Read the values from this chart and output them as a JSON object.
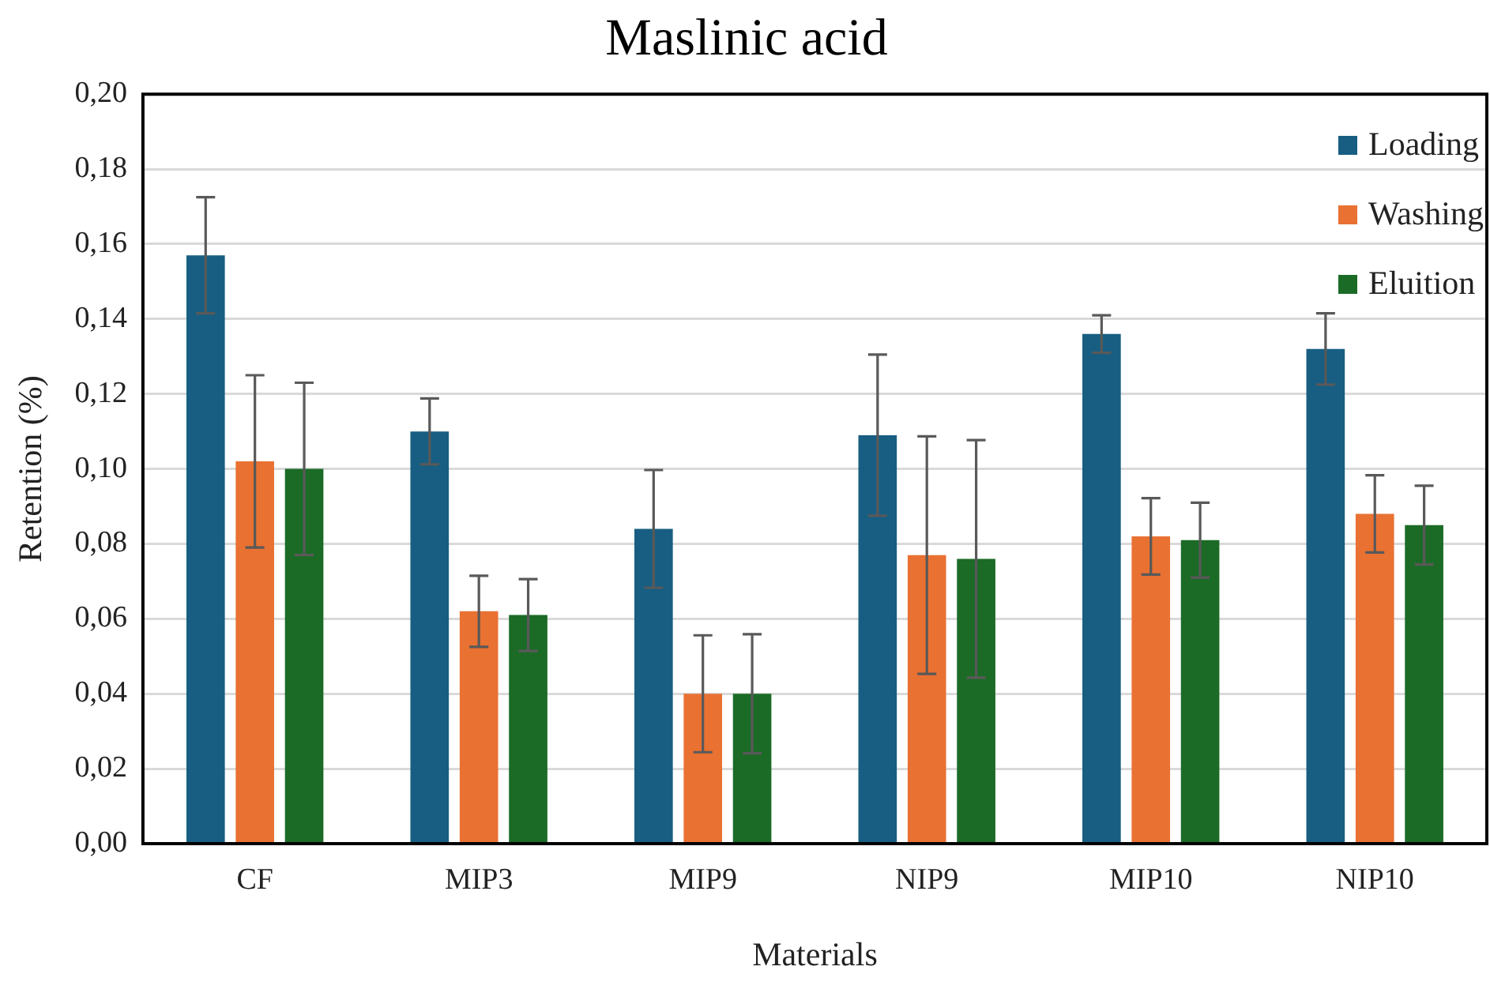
{
  "chart_data": {
    "type": "bar",
    "title": "Maslinic acid",
    "xlabel": "Materials",
    "ylabel": "Retention (%)",
    "categories": [
      "CF",
      "MIP3",
      "MIP9",
      "NIP9",
      "MIP10",
      "NIP10"
    ],
    "series": [
      {
        "name": "Loading",
        "color": "#175e82",
        "values": [
          0.157,
          0.11,
          0.084,
          0.109,
          0.136,
          0.132
        ],
        "errors": [
          0.0155,
          0.0088,
          0.0157,
          0.0215,
          0.005,
          0.0095
        ]
      },
      {
        "name": "Washing",
        "color": "#e97132",
        "values": [
          0.102,
          0.062,
          0.04,
          0.077,
          0.082,
          0.088
        ],
        "errors": [
          0.023,
          0.0095,
          0.0156,
          0.0317,
          0.0102,
          0.0103
        ]
      },
      {
        "name": "Eluition",
        "color": "#1b6b26",
        "values": [
          0.1,
          0.061,
          0.04,
          0.076,
          0.081,
          0.085
        ],
        "errors": [
          0.023,
          0.0096,
          0.0159,
          0.0317,
          0.01,
          0.0105
        ]
      }
    ],
    "ylim": [
      0,
      0.2
    ],
    "yticks": [
      {
        "value": 0,
        "label": "0,00"
      },
      {
        "value": 0.02,
        "label": "0,02"
      },
      {
        "value": 0.04,
        "label": "0,04"
      },
      {
        "value": 0.06,
        "label": "0,06"
      },
      {
        "value": 0.08,
        "label": "0,08"
      },
      {
        "value": 0.1,
        "label": "0,10"
      },
      {
        "value": 0.12,
        "label": "0,12"
      },
      {
        "value": 0.14,
        "label": "0,14"
      },
      {
        "value": 0.16,
        "label": "0,16"
      },
      {
        "value": 0.18,
        "label": "0,18"
      },
      {
        "value": 0.2,
        "label": "0,20"
      }
    ],
    "grid": "y",
    "legend": "top right"
  }
}
